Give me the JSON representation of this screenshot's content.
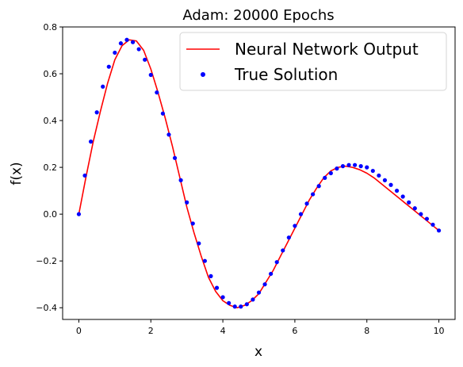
{
  "chart_data": {
    "type": "line",
    "title": "Adam: 20000 Epochs",
    "xlabel": "x",
    "ylabel": "f(x)",
    "xlim": [
      -0.45,
      10.45
    ],
    "ylim": [
      -0.45,
      0.8
    ],
    "xticks": [
      0,
      2,
      4,
      6,
      8,
      10
    ],
    "yticks": [
      -0.4,
      -0.2,
      0.0,
      0.2,
      0.4,
      0.6,
      0.8
    ],
    "xtick_labels": [
      "0",
      "2",
      "4",
      "6",
      "8",
      "10"
    ],
    "ytick_labels": [
      "−0.4",
      "−0.2",
      "0.0",
      "0.2",
      "0.4",
      "0.6",
      "0.8"
    ],
    "grid": false,
    "legend_position": "top-right",
    "series": [
      {
        "name": "Neural Network Output",
        "style": "line",
        "color": "#ff0000",
        "x": [
          0,
          0.2,
          0.4,
          0.6,
          0.8,
          1.0,
          1.2,
          1.4,
          1.6,
          1.8,
          2.0,
          2.2,
          2.4,
          2.6,
          2.8,
          3.0,
          3.2,
          3.4,
          3.6,
          3.8,
          4.0,
          4.2,
          4.4,
          4.6,
          4.8,
          5.0,
          5.2,
          5.4,
          5.6,
          5.8,
          6.0,
          6.2,
          6.4,
          6.6,
          6.8,
          7.0,
          7.2,
          7.4,
          7.6,
          7.8,
          8.0,
          8.2,
          8.4,
          8.6,
          8.8,
          9.0,
          9.2,
          9.4,
          9.6,
          9.8,
          10.0
        ],
        "y": [
          0.0,
          0.16,
          0.31,
          0.44,
          0.56,
          0.66,
          0.72,
          0.745,
          0.74,
          0.7,
          0.62,
          0.52,
          0.41,
          0.29,
          0.16,
          0.03,
          -0.08,
          -0.18,
          -0.27,
          -0.33,
          -0.37,
          -0.39,
          -0.4,
          -0.39,
          -0.37,
          -0.34,
          -0.29,
          -0.24,
          -0.18,
          -0.12,
          -0.06,
          0.0,
          0.06,
          0.11,
          0.155,
          0.185,
          0.2,
          0.205,
          0.2,
          0.19,
          0.175,
          0.155,
          0.13,
          0.105,
          0.08,
          0.055,
          0.03,
          0.005,
          -0.02,
          -0.045,
          -0.07
        ]
      },
      {
        "name": "True Solution",
        "style": "markers",
        "color": "#0000ff",
        "x": [
          0.0,
          0.1667,
          0.3333,
          0.5,
          0.6667,
          0.8333,
          1.0,
          1.1667,
          1.3333,
          1.5,
          1.6667,
          1.8333,
          2.0,
          2.1667,
          2.3333,
          2.5,
          2.6667,
          2.8333,
          3.0,
          3.1667,
          3.3333,
          3.5,
          3.6667,
          3.8333,
          4.0,
          4.1667,
          4.3333,
          4.5,
          4.6667,
          4.8333,
          5.0,
          5.1667,
          5.3333,
          5.5,
          5.6667,
          5.8333,
          6.0,
          6.1667,
          6.3333,
          6.5,
          6.6667,
          6.8333,
          7.0,
          7.1667,
          7.3333,
          7.5,
          7.6667,
          7.8333,
          8.0,
          8.1667,
          8.3333,
          8.5,
          8.6667,
          8.8333,
          9.0,
          9.1667,
          9.3333,
          9.5,
          9.6667,
          9.8333,
          10.0
        ],
        "y": [
          0.0,
          0.165,
          0.31,
          0.435,
          0.545,
          0.63,
          0.69,
          0.73,
          0.745,
          0.735,
          0.705,
          0.66,
          0.595,
          0.52,
          0.43,
          0.34,
          0.24,
          0.145,
          0.05,
          -0.04,
          -0.125,
          -0.2,
          -0.265,
          -0.315,
          -0.355,
          -0.38,
          -0.395,
          -0.395,
          -0.385,
          -0.365,
          -0.335,
          -0.3,
          -0.255,
          -0.205,
          -0.155,
          -0.1,
          -0.05,
          0.0,
          0.045,
          0.085,
          0.12,
          0.155,
          0.175,
          0.195,
          0.205,
          0.21,
          0.21,
          0.205,
          0.2,
          0.185,
          0.165,
          0.145,
          0.125,
          0.1,
          0.075,
          0.05,
          0.025,
          0.0,
          -0.02,
          -0.045,
          -0.07
        ]
      }
    ]
  }
}
